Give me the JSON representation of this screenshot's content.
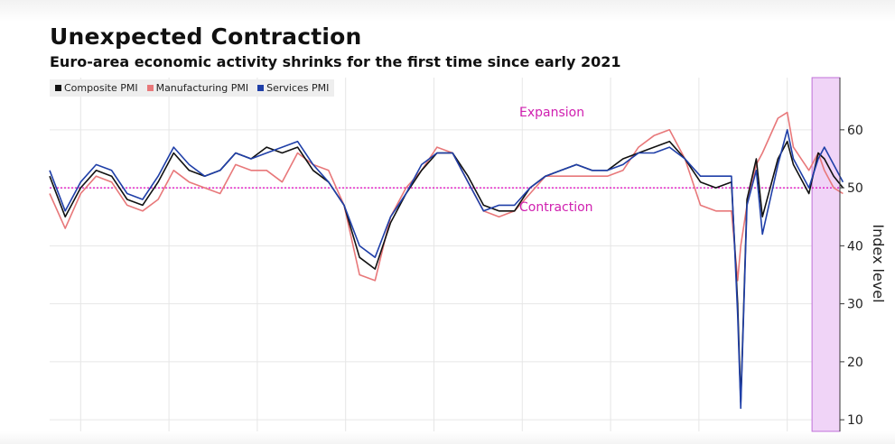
{
  "header": {
    "title": "Unexpected Contraction",
    "subtitle": "Euro-area economic activity shrinks for the first time since early 2021"
  },
  "chart_data": {
    "type": "line",
    "title": "Unexpected Contraction",
    "subtitle": "Euro-area economic activity shrinks for the first time since early 2021",
    "xlabel": "",
    "ylabel": "Index level",
    "x_start_year": 1998,
    "x_end_year": 2023.5,
    "x_points": [
      1998.0,
      1998.5,
      1999.0,
      1999.5,
      2000.0,
      2000.5,
      2001.0,
      2001.5,
      2002.0,
      2002.5,
      2003.0,
      2003.5,
      2004.0,
      2004.5,
      2005.0,
      2005.5,
      2006.0,
      2006.5,
      2007.0,
      2007.5,
      2008.0,
      2008.5,
      2009.0,
      2009.5,
      2010.0,
      2010.5,
      2011.0,
      2011.5,
      2012.0,
      2012.5,
      2013.0,
      2013.5,
      2014.0,
      2014.5,
      2015.0,
      2015.5,
      2016.0,
      2016.5,
      2017.0,
      2017.5,
      2018.0,
      2018.5,
      2019.0,
      2019.5,
      2020.0,
      2020.2,
      2020.3,
      2020.5,
      2020.8,
      2021.0,
      2021.5,
      2021.8,
      2022.0,
      2022.5,
      2022.8,
      2023.0,
      2023.3,
      2023.6
    ],
    "series": [
      {
        "name": "Composite PMI",
        "color": "#111111",
        "values": [
          52,
          45,
          50,
          53,
          52,
          48,
          47,
          51,
          56,
          53,
          52,
          53,
          56,
          55,
          57,
          56,
          57,
          53,
          51,
          47,
          38,
          36,
          44,
          49,
          53,
          56,
          56,
          52,
          47,
          46,
          46,
          50,
          52,
          53,
          54,
          53,
          53,
          55,
          56,
          57,
          58,
          55,
          51,
          50,
          51,
          30,
          13,
          48,
          55,
          45,
          55,
          58,
          54,
          49,
          56,
          55,
          52,
          50
        ]
      },
      {
        "name": "Manufacturing PMI",
        "color": "#e8787a",
        "values": [
          49,
          43,
          49,
          52,
          51,
          47,
          46,
          48,
          53,
          51,
          50,
          49,
          54,
          53,
          53,
          51,
          56,
          54,
          53,
          47,
          35,
          34,
          45,
          50,
          53,
          57,
          56,
          51,
          46,
          45,
          46,
          49,
          52,
          52,
          52,
          52,
          52,
          53,
          57,
          59,
          60,
          55,
          47,
          46,
          46,
          34,
          40,
          47,
          54,
          56,
          62,
          63,
          57,
          53,
          56,
          53,
          50,
          49
        ]
      },
      {
        "name": "Services PMI",
        "color": "#1f3fa8",
        "values": [
          53,
          46,
          51,
          54,
          53,
          49,
          48,
          52,
          57,
          54,
          52,
          53,
          56,
          55,
          56,
          57,
          58,
          54,
          51,
          47,
          40,
          38,
          45,
          49,
          54,
          56,
          56,
          51,
          46,
          47,
          47,
          50,
          52,
          53,
          54,
          53,
          53,
          54,
          56,
          56,
          57,
          55,
          52,
          52,
          52,
          28,
          12,
          47,
          53,
          42,
          54,
          60,
          55,
          50,
          55,
          57,
          54,
          51
        ]
      }
    ],
    "ylim": [
      8,
      69
    ],
    "y_ticks": [
      "10",
      "20",
      "30",
      "40",
      "50",
      "60"
    ],
    "grid": true,
    "reference_line": {
      "value": 50,
      "color": "#e000c0"
    },
    "annotations": [
      "Expansion",
      "Contraction"
    ],
    "highlight_region": {
      "x_from": 2022.6,
      "x_to": 2023.5,
      "color": "#f0d4f7"
    },
    "legend": "top-left"
  }
}
